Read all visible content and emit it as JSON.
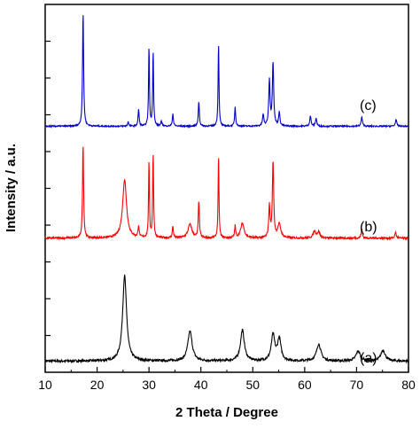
{
  "chart_data": {
    "type": "line",
    "title": "",
    "xlabel": "2 Theta / Degree",
    "ylabel": "Intensity / a.u.",
    "xlim": [
      10,
      80
    ],
    "x_ticks": [
      "10",
      "20",
      "30",
      "40",
      "50",
      "60",
      "70",
      "80"
    ],
    "y_tick_labels_shown": false,
    "grid": false,
    "legend": "none",
    "series": [
      {
        "label": "(a)",
        "color": "#000000",
        "baseline": 0.05,
        "noise": 0.012,
        "peaks": [
          [
            25.3,
            0.86,
            0.45
          ],
          [
            37.9,
            0.3,
            0.5
          ],
          [
            48.0,
            0.31,
            0.45
          ],
          [
            53.9,
            0.26,
            0.4
          ],
          [
            55.1,
            0.22,
            0.4
          ],
          [
            62.7,
            0.17,
            0.5
          ],
          [
            70.3,
            0.1,
            0.5
          ],
          [
            75.1,
            0.11,
            0.5
          ]
        ]
      },
      {
        "label": "(b)",
        "color": "#ff0000",
        "baseline": 0.03,
        "noise": 0.01,
        "peaks": [
          [
            17.3,
            0.97,
            0.12
          ],
          [
            25.3,
            0.6,
            0.45
          ],
          [
            28.0,
            0.12,
            0.12
          ],
          [
            30.0,
            0.78,
            0.1
          ],
          [
            30.8,
            0.88,
            0.1
          ],
          [
            34.6,
            0.12,
            0.12
          ],
          [
            37.9,
            0.14,
            0.45
          ],
          [
            39.6,
            0.38,
            0.12
          ],
          [
            43.4,
            0.84,
            0.1
          ],
          [
            46.6,
            0.12,
            0.12
          ],
          [
            48.0,
            0.15,
            0.4
          ],
          [
            53.2,
            0.32,
            0.15
          ],
          [
            53.9,
            0.78,
            0.15
          ],
          [
            55.1,
            0.14,
            0.35
          ],
          [
            61.9,
            0.07,
            0.3
          ],
          [
            62.7,
            0.06,
            0.3
          ],
          [
            71.0,
            0.09,
            0.15
          ],
          [
            77.5,
            0.06,
            0.15
          ]
        ]
      },
      {
        "label": "(c)",
        "color": "#0000cc",
        "baseline": 0.02,
        "noise": 0.006,
        "peaks": [
          [
            17.3,
            1.0,
            0.12
          ],
          [
            26.0,
            0.04,
            0.12
          ],
          [
            28.0,
            0.15,
            0.12
          ],
          [
            30.0,
            0.7,
            0.1
          ],
          [
            30.8,
            0.66,
            0.1
          ],
          [
            32.4,
            0.04,
            0.15
          ],
          [
            34.6,
            0.11,
            0.12
          ],
          [
            39.6,
            0.22,
            0.12
          ],
          [
            43.4,
            0.74,
            0.1
          ],
          [
            46.6,
            0.17,
            0.12
          ],
          [
            52.0,
            0.1,
            0.15
          ],
          [
            53.2,
            0.4,
            0.15
          ],
          [
            53.9,
            0.56,
            0.15
          ],
          [
            55.1,
            0.12,
            0.15
          ],
          [
            61.1,
            0.09,
            0.15
          ],
          [
            62.2,
            0.07,
            0.15
          ],
          [
            71.0,
            0.08,
            0.15
          ],
          [
            77.6,
            0.06,
            0.15
          ]
        ]
      }
    ]
  }
}
